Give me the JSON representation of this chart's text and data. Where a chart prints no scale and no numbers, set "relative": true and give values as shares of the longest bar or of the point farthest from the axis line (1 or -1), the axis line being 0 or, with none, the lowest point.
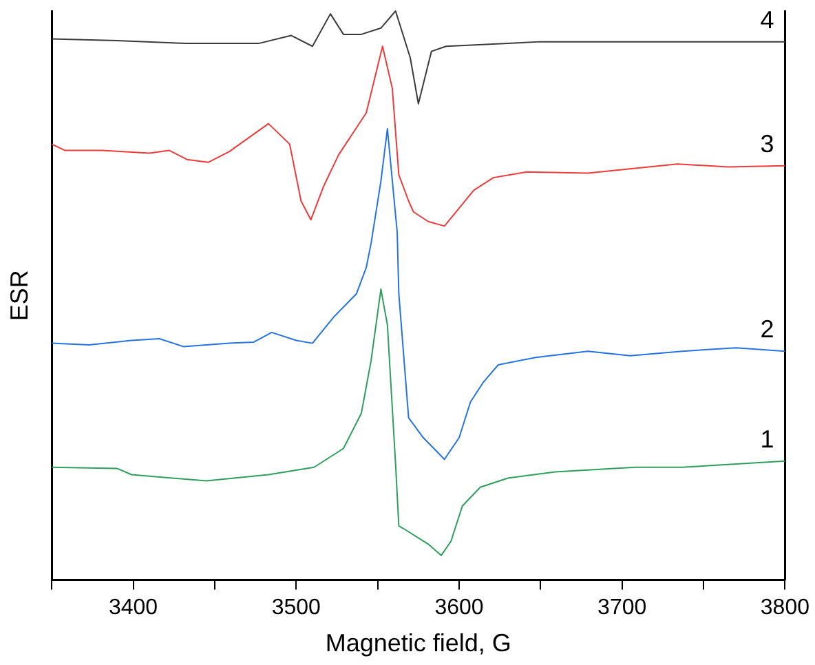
{
  "chart_data": {
    "type": "line",
    "xlabel": "Magnetic field, G",
    "ylabel": "ESR",
    "relative": true,
    "legend": false,
    "grid": false,
    "marker": "none",
    "line_style": "solid",
    "xlim": [
      3350,
      3800
    ],
    "xticks": [
      {
        "value": 3350,
        "label": null
      },
      3400,
      {
        "value": 3450,
        "label": null
      },
      3500,
      {
        "value": 3550,
        "label": null
      },
      3600,
      {
        "value": 3650,
        "label": null
      },
      3700,
      {
        "value": 3750,
        "label": null
      },
      3800
    ],
    "series": [
      {
        "name": "1",
        "color": "#2e9e5c",
        "x": [
          3350,
          3390,
          3399,
          3445,
          3483,
          3511,
          3529,
          3540,
          3546,
          3552,
          3556,
          3561,
          3563,
          3566,
          3581,
          3589,
          3595,
          3602,
          3613,
          3630,
          3659,
          3708,
          3737,
          3800
        ],
        "values": [
          0.198,
          0.196,
          0.185,
          0.174,
          0.185,
          0.198,
          0.231,
          0.293,
          0.386,
          0.511,
          0.448,
          0.204,
          0.095,
          0.09,
          0.063,
          0.043,
          0.068,
          0.13,
          0.163,
          0.179,
          0.19,
          0.198,
          0.198,
          0.209
        ]
      },
      {
        "name": "2",
        "color": "#2473e0",
        "x": [
          3350,
          3373,
          3399,
          3416,
          3431,
          3459,
          3474,
          3485,
          3500,
          3510,
          3523,
          3537,
          3543,
          3546,
          3552,
          3556,
          3562,
          3563,
          3569,
          3578,
          3591,
          3600,
          3607,
          3615,
          3624,
          3647,
          3679,
          3705,
          3737,
          3770,
          3800
        ],
        "values": [
          0.416,
          0.413,
          0.421,
          0.424,
          0.41,
          0.416,
          0.418,
          0.435,
          0.421,
          0.416,
          0.462,
          0.503,
          0.549,
          0.592,
          0.701,
          0.793,
          0.611,
          0.503,
          0.285,
          0.25,
          0.212,
          0.25,
          0.313,
          0.348,
          0.378,
          0.391,
          0.402,
          0.394,
          0.402,
          0.408,
          0.402
        ]
      },
      {
        "name": "3",
        "color": "#ee3a3a",
        "x": [
          3350,
          3358,
          3381,
          3410,
          3422,
          3433,
          3446,
          3459,
          3483,
          3496,
          3503,
          3509,
          3517,
          3526,
          3543,
          3553,
          3559,
          3563,
          3569,
          3572,
          3581,
          3591,
          3609,
          3621,
          3641,
          3679,
          3734,
          3765,
          3800
        ],
        "values": [
          0.766,
          0.755,
          0.755,
          0.75,
          0.755,
          0.739,
          0.734,
          0.753,
          0.802,
          0.766,
          0.666,
          0.633,
          0.693,
          0.747,
          0.821,
          0.938,
          0.864,
          0.712,
          0.666,
          0.647,
          0.63,
          0.622,
          0.685,
          0.707,
          0.717,
          0.715,
          0.731,
          0.726,
          0.728
        ]
      },
      {
        "name": "4",
        "color": "#3a3a3a",
        "x": [
          3350,
          3390,
          3433,
          3477,
          3497,
          3510,
          3521,
          3529,
          3540,
          3552,
          3561,
          3570,
          3575,
          3583,
          3592,
          3650,
          3737,
          3800
        ],
        "values": [
          0.951,
          0.948,
          0.943,
          0.943,
          0.957,
          0.938,
          0.995,
          0.959,
          0.959,
          0.97,
          1.0,
          0.918,
          0.837,
          0.929,
          0.938,
          0.946,
          0.946,
          0.946
        ]
      }
    ]
  }
}
